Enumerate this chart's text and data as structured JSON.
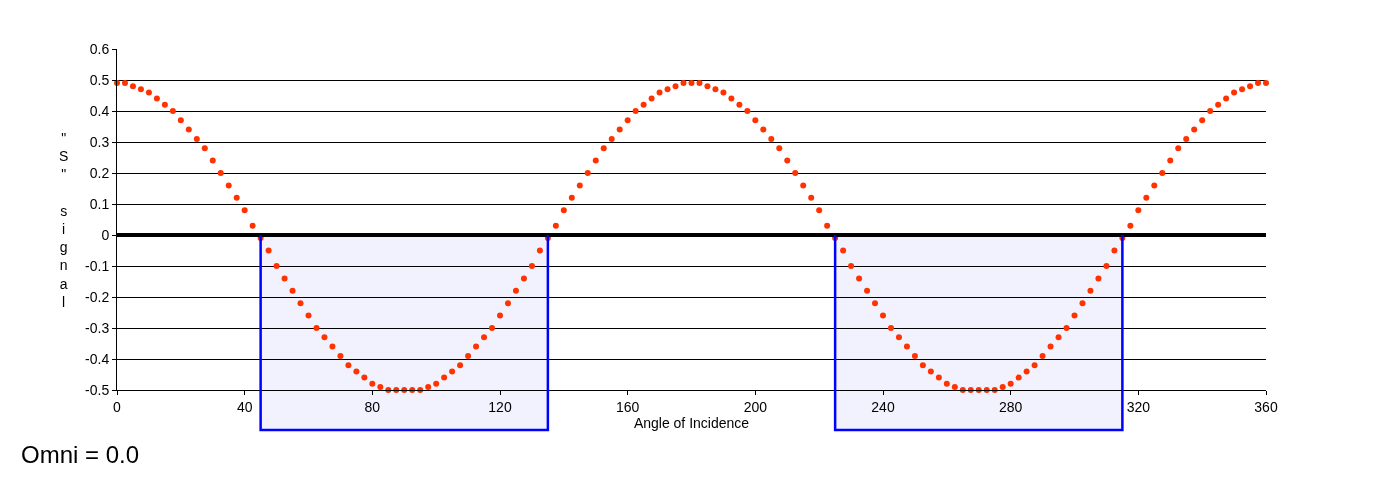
{
  "chart_data": {
    "type": "scatter",
    "xlabel": "Angle of Incidence",
    "ylabel": "\"S\" signal",
    "annotations": [
      "Omni = 0.0"
    ],
    "x": [
      0,
      2.5,
      5,
      7.5,
      10,
      12.5,
      15,
      17.5,
      20,
      22.5,
      25,
      27.5,
      30,
      32.5,
      35,
      37.5,
      40,
      42.5,
      45,
      47.5,
      50,
      52.5,
      55,
      57.5,
      60,
      62.5,
      65,
      67.5,
      70,
      72.5,
      75,
      77.5,
      80,
      82.5,
      85,
      87.5,
      90,
      92.5,
      95,
      97.5,
      100,
      102.5,
      105,
      107.5,
      110,
      112.5,
      115,
      117.5,
      120,
      122.5,
      125,
      127.5,
      130,
      132.5,
      135,
      137.5,
      140,
      142.5,
      145,
      147.5,
      150,
      152.5,
      155,
      157.5,
      160,
      162.5,
      165,
      167.5,
      170,
      172.5,
      175,
      177.5,
      180,
      182.5,
      185,
      187.5,
      190,
      192.5,
      195,
      197.5,
      200,
      202.5,
      205,
      207.5,
      210,
      212.5,
      215,
      217.5,
      220,
      222.5,
      225,
      227.5,
      230,
      232.5,
      235,
      237.5,
      240,
      242.5,
      245,
      247.5,
      250,
      252.5,
      255,
      257.5,
      260,
      262.5,
      265,
      267.5,
      270,
      272.5,
      275,
      277.5,
      280,
      282.5,
      285,
      287.5,
      290,
      292.5,
      295,
      297.5,
      300,
      302.5,
      305,
      307.5,
      310,
      312.5,
      315,
      317.5,
      320,
      322.5,
      325,
      327.5,
      330,
      332.5,
      335,
      337.5,
      340,
      342.5,
      345,
      347.5,
      350,
      352.5,
      355,
      357.5,
      360
    ],
    "series": [
      {
        "color": "#ff3300",
        "values": [
          0.49,
          0.49,
          0.48,
          0.47,
          0.46,
          0.44,
          0.42,
          0.4,
          0.37,
          0.34,
          0.31,
          0.28,
          0.24,
          0.2,
          0.16,
          0.12,
          0.08,
          0.03,
          -0.01,
          -0.05,
          -0.1,
          -0.14,
          -0.18,
          -0.22,
          -0.26,
          -0.3,
          -0.33,
          -0.36,
          -0.39,
          -0.42,
          -0.44,
          -0.46,
          -0.48,
          -0.49,
          -0.5,
          -0.5,
          -0.5,
          -0.5,
          -0.5,
          -0.49,
          -0.48,
          -0.46,
          -0.44,
          -0.42,
          -0.39,
          -0.36,
          -0.33,
          -0.3,
          -0.26,
          -0.22,
          -0.18,
          -0.14,
          -0.1,
          -0.05,
          -0.01,
          0.03,
          0.08,
          0.12,
          0.16,
          0.2,
          0.24,
          0.28,
          0.31,
          0.34,
          0.37,
          0.4,
          0.42,
          0.44,
          0.46,
          0.47,
          0.48,
          0.49,
          0.49,
          0.49,
          0.48,
          0.47,
          0.46,
          0.44,
          0.42,
          0.4,
          0.37,
          0.34,
          0.31,
          0.28,
          0.24,
          0.2,
          0.16,
          0.12,
          0.08,
          0.03,
          -0.01,
          -0.05,
          -0.1,
          -0.14,
          -0.18,
          -0.22,
          -0.26,
          -0.3,
          -0.33,
          -0.36,
          -0.39,
          -0.42,
          -0.44,
          -0.46,
          -0.48,
          -0.49,
          -0.5,
          -0.5,
          -0.5,
          -0.5,
          -0.5,
          -0.49,
          -0.48,
          -0.46,
          -0.44,
          -0.42,
          -0.39,
          -0.36,
          -0.33,
          -0.3,
          -0.26,
          -0.22,
          -0.18,
          -0.14,
          -0.1,
          -0.05,
          -0.01,
          0.03,
          0.08,
          0.12,
          0.16,
          0.2,
          0.24,
          0.28,
          0.31,
          0.34,
          0.37,
          0.4,
          0.42,
          0.44,
          0.46,
          0.47,
          0.48,
          0.49,
          0.49
        ]
      }
    ],
    "marker": "circle",
    "xlim": [
      0,
      360
    ],
    "xticks": [
      0,
      40,
      80,
      120,
      160,
      200,
      240,
      280,
      320,
      360
    ],
    "ylim": [
      -0.5,
      0.6
    ],
    "yticks": [
      {
        "value": -0.5,
        "label": "-0.5"
      },
      {
        "value": -0.4,
        "label": "-0.4"
      },
      {
        "value": -0.3,
        "label": "-0.3"
      },
      {
        "value": -0.2,
        "label": "-0.2"
      },
      {
        "value": -0.1,
        "label": "-0.1"
      },
      0,
      0.1,
      0.2,
      0.3,
      0.4,
      0.5,
      0.6
    ],
    "grid": "y",
    "ref_lines": [
      {
        "axis": "y",
        "value": 0,
        "color": "#000000"
      }
    ],
    "bands": [
      {
        "axis": "x",
        "from": 45,
        "to": 135,
        "color": "#0000ff"
      },
      {
        "axis": "x",
        "from": 225,
        "to": 315,
        "color": "#0000ff"
      }
    ]
  }
}
